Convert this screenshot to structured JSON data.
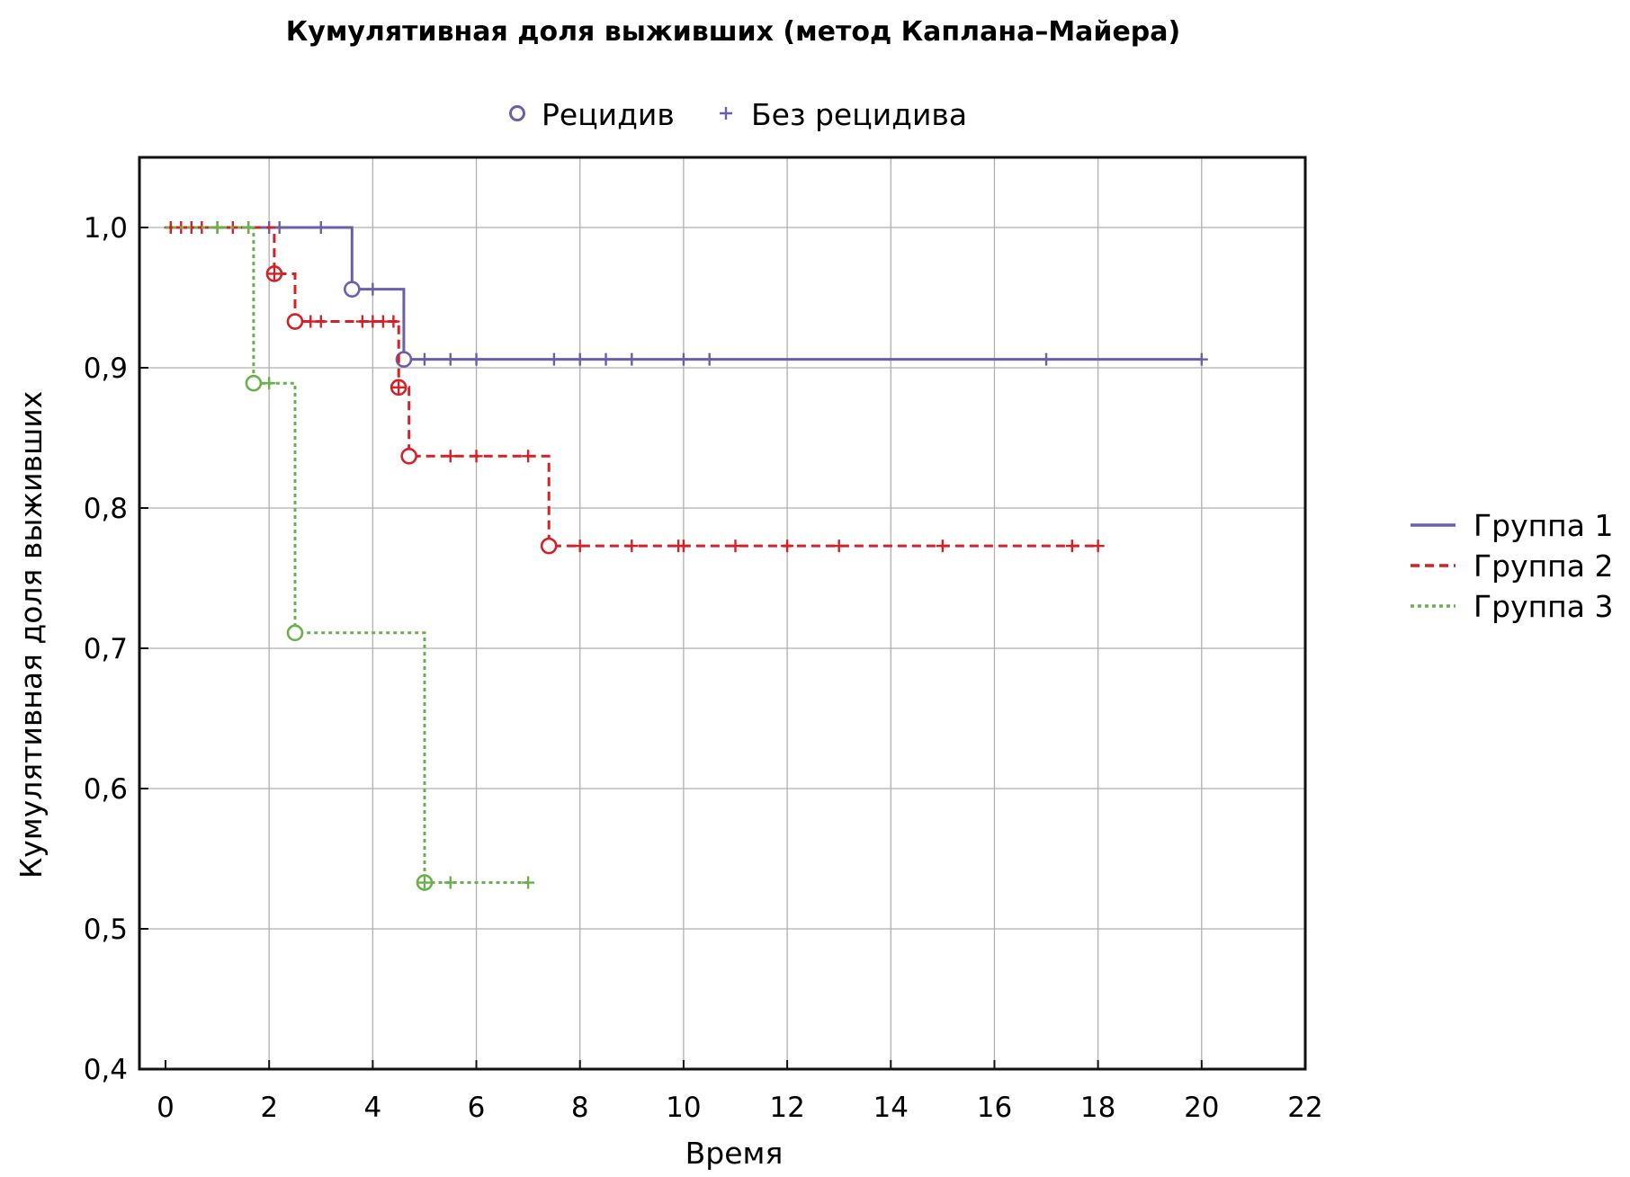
{
  "chart_data": {
    "type": "line",
    "subtype": "kaplan-meier",
    "title": "Кумулятивная доля выживших (метод Каплана–Майера)",
    "xlabel": "Время",
    "ylabel": "Кумулятивная доля выживших",
    "xlim": [
      0,
      22
    ],
    "ylim": [
      0.4,
      1.05
    ],
    "xticks": [
      0,
      2,
      4,
      6,
      8,
      10,
      12,
      14,
      16,
      18,
      20,
      22
    ],
    "xtick_labels": [
      "0",
      "2",
      "4",
      "6",
      "8",
      "10",
      "12",
      "14",
      "16",
      "18",
      "20",
      "22"
    ],
    "yticks": [
      0.4,
      0.5,
      0.6,
      0.7,
      0.8,
      0.9,
      1.0
    ],
    "ytick_labels": [
      "0,4",
      "0,5",
      "0,6",
      "0,7",
      "0,8",
      "0,9",
      "1,0"
    ],
    "grid": true,
    "marker_legend": {
      "placement": "top",
      "items": [
        {
          "label": "Рецидив",
          "marker": "circle"
        },
        {
          "label": "Без рецидива",
          "marker": "plus"
        }
      ]
    },
    "series_legend_placement": "right",
    "series": [
      {
        "name": "Группа 1",
        "color": "#6a5fad",
        "line_style": "solid",
        "steps": [
          [
            0.0,
            1.0
          ],
          [
            3.6,
            0.956
          ],
          [
            4.6,
            0.906
          ],
          [
            20.0,
            0.906
          ]
        ],
        "events": [
          [
            3.6,
            0.956
          ],
          [
            4.6,
            0.906
          ]
        ],
        "censored": [
          [
            2.0,
            1.0
          ],
          [
            2.2,
            1.0
          ],
          [
            3.0,
            1.0
          ],
          [
            4.0,
            0.956
          ],
          [
            5.0,
            0.906
          ],
          [
            5.5,
            0.906
          ],
          [
            6.0,
            0.906
          ],
          [
            7.5,
            0.906
          ],
          [
            8.0,
            0.906
          ],
          [
            8.5,
            0.906
          ],
          [
            9.0,
            0.906
          ],
          [
            10.0,
            0.906
          ],
          [
            10.5,
            0.906
          ],
          [
            17.0,
            0.906
          ],
          [
            20.0,
            0.906
          ]
        ]
      },
      {
        "name": "Группа 2",
        "color": "#d42027",
        "line_style": "dashed",
        "steps": [
          [
            0.0,
            1.0
          ],
          [
            2.1,
            0.967
          ],
          [
            2.5,
            0.933
          ],
          [
            4.5,
            0.886
          ],
          [
            4.7,
            0.837
          ],
          [
            7.4,
            0.773
          ],
          [
            18.0,
            0.773
          ]
        ],
        "events": [
          [
            2.1,
            0.967
          ],
          [
            2.5,
            0.933
          ],
          [
            4.5,
            0.886
          ],
          [
            4.7,
            0.837
          ],
          [
            7.4,
            0.773
          ]
        ],
        "censored": [
          [
            0.1,
            1.0
          ],
          [
            0.3,
            1.0
          ],
          [
            0.5,
            1.0
          ],
          [
            0.7,
            1.0
          ],
          [
            1.0,
            1.0
          ],
          [
            1.3,
            1.0
          ],
          [
            1.6,
            1.0
          ],
          [
            2.1,
            0.967
          ],
          [
            2.8,
            0.933
          ],
          [
            3.0,
            0.933
          ],
          [
            3.8,
            0.933
          ],
          [
            4.0,
            0.933
          ],
          [
            4.2,
            0.933
          ],
          [
            4.4,
            0.933
          ],
          [
            4.5,
            0.886
          ],
          [
            5.5,
            0.837
          ],
          [
            6.0,
            0.837
          ],
          [
            7.0,
            0.837
          ],
          [
            8.0,
            0.773
          ],
          [
            9.0,
            0.773
          ],
          [
            9.9,
            0.773
          ],
          [
            10.0,
            0.773
          ],
          [
            11.0,
            0.773
          ],
          [
            12.0,
            0.773
          ],
          [
            13.0,
            0.773
          ],
          [
            15.0,
            0.773
          ],
          [
            17.5,
            0.773
          ],
          [
            18.0,
            0.773
          ]
        ]
      },
      {
        "name": "Группа 3",
        "color": "#6ab04c",
        "line_style": "dotted",
        "steps": [
          [
            0.0,
            1.0
          ],
          [
            1.7,
            0.889
          ],
          [
            2.5,
            0.711
          ],
          [
            5.0,
            0.533
          ],
          [
            7.0,
            0.533
          ]
        ],
        "events": [
          [
            1.7,
            0.889
          ],
          [
            2.5,
            0.711
          ],
          [
            5.0,
            0.533
          ]
        ],
        "censored": [
          [
            1.0,
            1.0
          ],
          [
            1.6,
            1.0
          ],
          [
            2.0,
            0.889
          ],
          [
            5.0,
            0.533
          ],
          [
            5.5,
            0.533
          ],
          [
            7.0,
            0.533
          ]
        ]
      }
    ]
  }
}
